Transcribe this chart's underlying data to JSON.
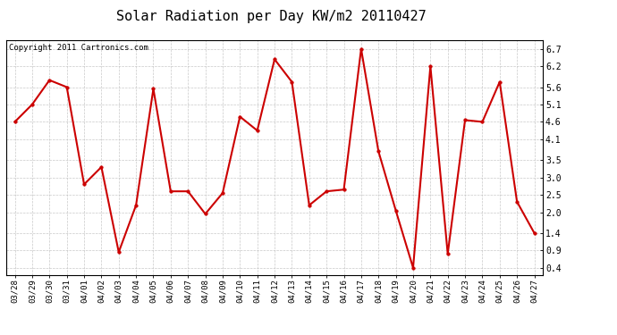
{
  "title": "Solar Radiation per Day KW/m2 20110427",
  "copyright": "Copyright 2011 Cartronics.com",
  "dates": [
    "03/28",
    "03/29",
    "03/30",
    "03/31",
    "04/01",
    "04/02",
    "04/03",
    "04/04",
    "04/05",
    "04/06",
    "04/07",
    "04/08",
    "04/09",
    "04/10",
    "04/11",
    "04/12",
    "04/13",
    "04/14",
    "04/15",
    "04/16",
    "04/17",
    "04/18",
    "04/19",
    "04/20",
    "04/21",
    "04/22",
    "04/23",
    "04/24",
    "04/25",
    "04/26",
    "04/27"
  ],
  "values": [
    4.6,
    5.1,
    5.8,
    5.6,
    2.8,
    3.3,
    0.85,
    2.2,
    5.55,
    2.6,
    2.6,
    1.95,
    2.55,
    4.75,
    4.35,
    6.4,
    5.75,
    2.2,
    2.6,
    2.65,
    6.7,
    3.75,
    2.05,
    0.4,
    6.2,
    0.8,
    4.65,
    4.6,
    5.75,
    2.3,
    1.4
  ],
  "line_color": "#cc0000",
  "marker": "o",
  "marker_size": 2.5,
  "line_width": 1.5,
  "yticks": [
    0.4,
    0.9,
    1.4,
    2.0,
    2.5,
    3.0,
    3.5,
    4.1,
    4.6,
    5.1,
    5.6,
    6.2,
    6.7
  ],
  "ylim": [
    0.2,
    6.95
  ],
  "bg_color": "#ffffff",
  "grid_color": "#bbbbbb",
  "title_fontsize": 11,
  "copyright_fontsize": 6.5,
  "tick_fontsize": 6.5,
  "ytick_fontsize": 7
}
